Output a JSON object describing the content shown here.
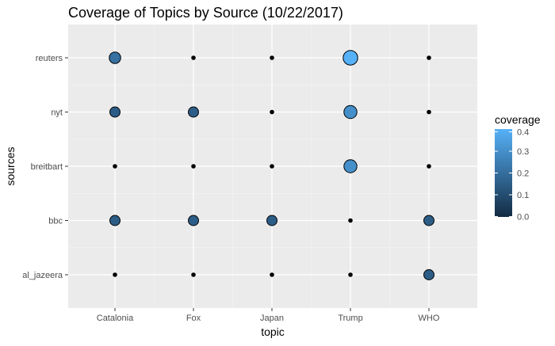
{
  "chart_data": {
    "type": "scatter",
    "title": "Coverage of Topics by Source (10/22/2017)",
    "xlabel": "topic",
    "ylabel": "sources",
    "categories_x": [
      "Catalonia",
      "Fox",
      "Japan",
      "Trump",
      "WHO"
    ],
    "categories_y": [
      "al_jazeera",
      "bbc",
      "breitbart",
      "nyt",
      "reuters"
    ],
    "grid": true,
    "legend": {
      "title": "coverage",
      "placement": "right",
      "ticks": [
        0.0,
        0.1,
        0.2,
        0.3,
        0.4
      ],
      "tick_labels": [
        "0.0",
        "0.1",
        "0.2",
        "0.3",
        "0.4"
      ],
      "range": [
        0.0,
        0.4
      ],
      "color_low": "#132B43",
      "color_high": "#56B1F7"
    },
    "points": [
      {
        "x": "Catalonia",
        "y": "reuters",
        "coverage": 0.21
      },
      {
        "x": "Fox",
        "y": "reuters",
        "coverage": 0.0
      },
      {
        "x": "Japan",
        "y": "reuters",
        "coverage": 0.0
      },
      {
        "x": "Trump",
        "y": "reuters",
        "coverage": 0.41
      },
      {
        "x": "WHO",
        "y": "reuters",
        "coverage": 0.0
      },
      {
        "x": "Catalonia",
        "y": "nyt",
        "coverage": 0.15
      },
      {
        "x": "Fox",
        "y": "nyt",
        "coverage": 0.15
      },
      {
        "x": "Japan",
        "y": "nyt",
        "coverage": 0.0
      },
      {
        "x": "Trump",
        "y": "nyt",
        "coverage": 0.3
      },
      {
        "x": "WHO",
        "y": "nyt",
        "coverage": 0.0
      },
      {
        "x": "Catalonia",
        "y": "breitbart",
        "coverage": 0.0
      },
      {
        "x": "Fox",
        "y": "breitbart",
        "coverage": 0.0
      },
      {
        "x": "Japan",
        "y": "breitbart",
        "coverage": 0.0
      },
      {
        "x": "Trump",
        "y": "breitbart",
        "coverage": 0.3
      },
      {
        "x": "WHO",
        "y": "breitbart",
        "coverage": 0.0
      },
      {
        "x": "Catalonia",
        "y": "bbc",
        "coverage": 0.15
      },
      {
        "x": "Fox",
        "y": "bbc",
        "coverage": 0.15
      },
      {
        "x": "Japan",
        "y": "bbc",
        "coverage": 0.15
      },
      {
        "x": "Trump",
        "y": "bbc",
        "coverage": 0.0
      },
      {
        "x": "WHO",
        "y": "bbc",
        "coverage": 0.15
      },
      {
        "x": "Catalonia",
        "y": "al_jazeera",
        "coverage": 0.0
      },
      {
        "x": "Fox",
        "y": "al_jazeera",
        "coverage": 0.0
      },
      {
        "x": "Japan",
        "y": "al_jazeera",
        "coverage": 0.0
      },
      {
        "x": "Trump",
        "y": "al_jazeera",
        "coverage": 0.0
      },
      {
        "x": "WHO",
        "y": "al_jazeera",
        "coverage": 0.15
      }
    ]
  }
}
